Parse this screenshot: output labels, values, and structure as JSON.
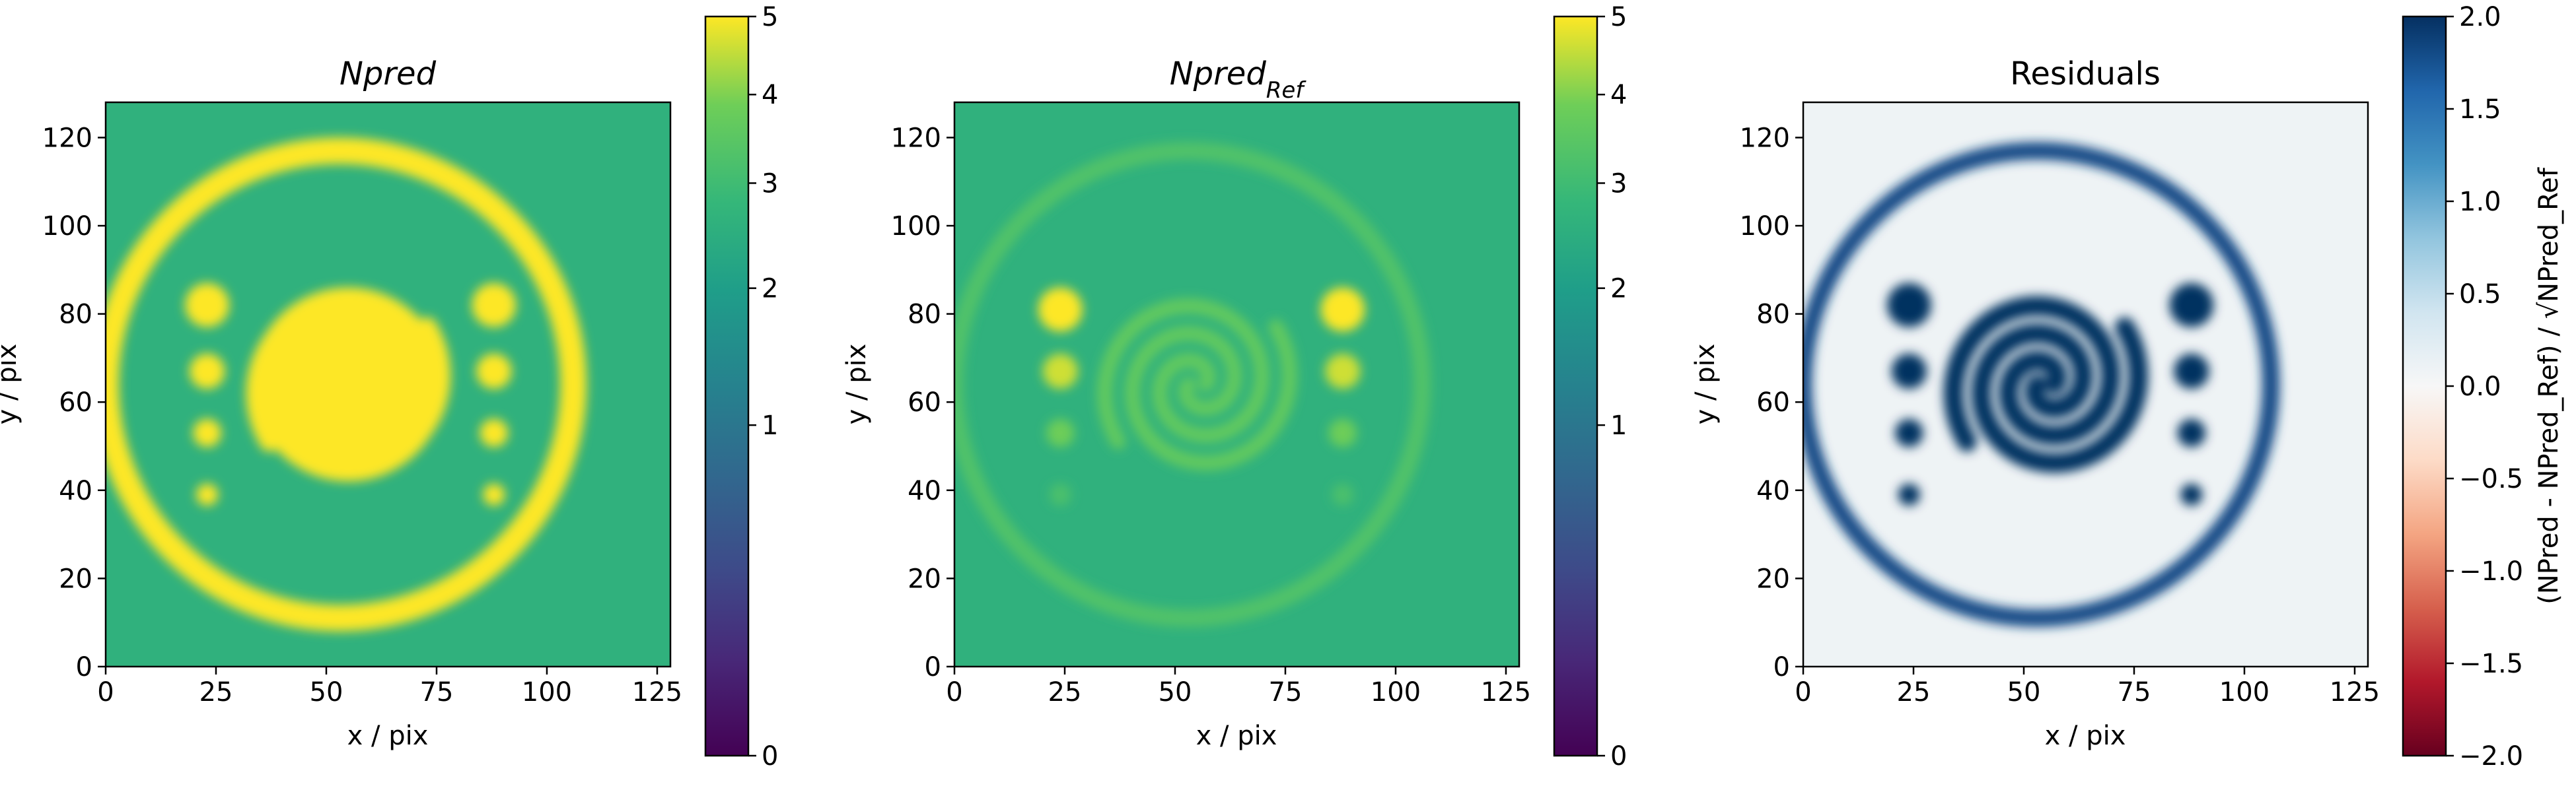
{
  "chart_data": [
    {
      "type": "heatmap",
      "title_main": "Npred",
      "title_sub": "",
      "xlabel": "x / pix",
      "ylabel": "y / pix",
      "xlim": [
        0,
        128
      ],
      "ylim": [
        0,
        128
      ],
      "xticks": [
        "0",
        "25",
        "50",
        "75",
        "100",
        "125"
      ],
      "yticks": [
        "0",
        "20",
        "40",
        "60",
        "80",
        "100",
        "120"
      ],
      "colormap": "viridis",
      "colorbar": {
        "scale": "sqrt",
        "range": [
          0,
          5
        ],
        "ticks": [
          "0",
          "1",
          "2",
          "3",
          "4",
          "5"
        ],
        "label": ""
      },
      "background_value": 2.6,
      "features": {
        "ring": {
          "center": [
            53,
            64
          ],
          "radius": 53,
          "value": 5
        },
        "spiral": {
          "center": [
            55,
            64
          ],
          "value": 5,
          "filled_disk_radius": 22
        },
        "blobs": [
          {
            "x": 23,
            "y": 82,
            "value": 5
          },
          {
            "x": 23,
            "y": 67,
            "value": 5
          },
          {
            "x": 23,
            "y": 53,
            "value": 5
          },
          {
            "x": 23,
            "y": 39,
            "value": 5
          },
          {
            "x": 88,
            "y": 82,
            "value": 5
          },
          {
            "x": 88,
            "y": 67,
            "value": 5
          },
          {
            "x": 88,
            "y": 53,
            "value": 5
          },
          {
            "x": 88,
            "y": 39,
            "value": 5
          }
        ]
      }
    },
    {
      "type": "heatmap",
      "title_main": "Npred",
      "title_sub": "Ref",
      "xlabel": "x / pix",
      "ylabel": "y / pix",
      "xlim": [
        0,
        128
      ],
      "ylim": [
        0,
        128
      ],
      "xticks": [
        "0",
        "25",
        "50",
        "75",
        "100",
        "125"
      ],
      "yticks": [
        "0",
        "20",
        "40",
        "60",
        "80",
        "100",
        "120"
      ],
      "colormap": "viridis",
      "colorbar": {
        "scale": "sqrt",
        "range": [
          0,
          5
        ],
        "ticks": [
          "0",
          "1",
          "2",
          "3",
          "4",
          "5"
        ],
        "label": ""
      },
      "background_value": 2.6,
      "features": {
        "ring": {
          "center": [
            53,
            64
          ],
          "radius": 53,
          "value": 3.3
        },
        "spiral": {
          "center": [
            55,
            64
          ],
          "value": 3.6
        },
        "blobs": [
          {
            "x": 24,
            "y": 81,
            "value": 5
          },
          {
            "x": 24,
            "y": 67,
            "value": 4.6
          },
          {
            "x": 24,
            "y": 53,
            "value": 3.8
          },
          {
            "x": 24,
            "y": 39,
            "value": 3.2
          },
          {
            "x": 88,
            "y": 81,
            "value": 5
          },
          {
            "x": 88,
            "y": 67,
            "value": 4.6
          },
          {
            "x": 88,
            "y": 53,
            "value": 3.8
          },
          {
            "x": 88,
            "y": 39,
            "value": 3.2
          }
        ]
      }
    },
    {
      "type": "heatmap",
      "title_main": "Residuals",
      "title_sub": "",
      "xlabel": "x / pix",
      "ylabel": "y / pix",
      "xlim": [
        0,
        128
      ],
      "ylim": [
        0,
        128
      ],
      "xticks": [
        "0",
        "25",
        "50",
        "75",
        "100",
        "125"
      ],
      "yticks": [
        "0",
        "20",
        "40",
        "60",
        "80",
        "100",
        "120"
      ],
      "colormap": "RdBu",
      "colorbar": {
        "scale": "linear",
        "range": [
          -2.0,
          2.0
        ],
        "ticks": [
          "2.0",
          "1.5",
          "1.0",
          "0.5",
          "0.0",
          "−0.5",
          "−1.0",
          "−1.5",
          "−2.0"
        ],
        "label": "(NPred - NPred_Ref) / √NPred_Ref"
      },
      "background_value": 0.1,
      "features": {
        "ring": {
          "center": [
            53,
            64
          ],
          "radius": 53,
          "value": 1.8
        },
        "spiral": {
          "center": [
            55,
            64
          ],
          "value": 2.0
        },
        "blobs": [
          {
            "x": 24,
            "y": 82,
            "value": 2.0
          },
          {
            "x": 24,
            "y": 67,
            "value": 2.0
          },
          {
            "x": 24,
            "y": 53,
            "value": 2.0
          },
          {
            "x": 24,
            "y": 39,
            "value": 2.0
          },
          {
            "x": 88,
            "y": 82,
            "value": 2.0
          },
          {
            "x": 88,
            "y": 67,
            "value": 2.0
          },
          {
            "x": 88,
            "y": 53,
            "value": 2.0
          },
          {
            "x": 88,
            "y": 39,
            "value": 2.0
          }
        ]
      }
    }
  ]
}
